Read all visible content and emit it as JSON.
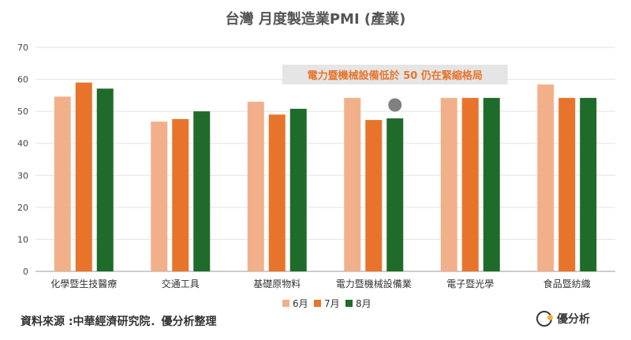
{
  "chart_data": {
    "type": "bar",
    "title": "台灣 月度製造業PMI (產業)",
    "categories": [
      "化學暨生技醫療",
      "交通工具",
      "基礎原物料",
      "電力暨機械設備業",
      "電子暨光學",
      "食品暨紡織"
    ],
    "series": [
      {
        "name": "6月",
        "values": [
          54.6,
          46.8,
          53.0,
          54.2,
          54.2,
          58.4
        ],
        "color": "#f2b08a"
      },
      {
        "name": "7月",
        "values": [
          59.0,
          47.6,
          49.0,
          47.3,
          54.2,
          54.2
        ],
        "color": "#e8742c"
      },
      {
        "name": "8月",
        "values": [
          57.1,
          50.0,
          50.8,
          47.8,
          54.2,
          54.2
        ],
        "color": "#1e6b2a"
      }
    ],
    "ylim": [
      0,
      70
    ],
    "yticks": [
      0,
      10,
      20,
      30,
      40,
      50,
      60,
      70
    ],
    "grid": true,
    "legend_position": "bottom",
    "annotation": {
      "text": "電力暨機械設備低於 50 仍在緊縮格局",
      "category_index": 3,
      "series_index": 2,
      "marker_color": "#808080",
      "box_color": "#e5e5e5",
      "text_color": "#e8742c"
    }
  },
  "footer": {
    "source": "資料來源 :中華經濟研究院．優分析整理",
    "brand": "優分析"
  }
}
